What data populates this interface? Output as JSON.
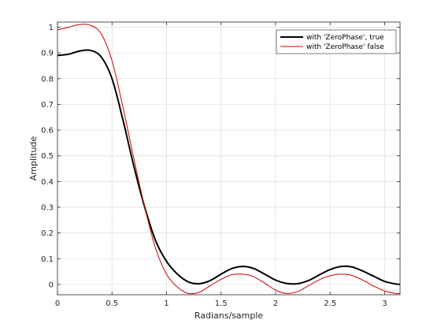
{
  "chart_data": {
    "type": "line",
    "xlabel": "Radians/sample",
    "ylabel": "Amplitude",
    "xlim": [
      0,
      3.1416
    ],
    "ylim": [
      -0.04,
      1.02
    ],
    "x_ticks": [
      0,
      0.5,
      1,
      1.5,
      2,
      2.5,
      3
    ],
    "x_tick_labels": [
      "0",
      "0.5",
      "1",
      "1.5",
      "2",
      "2.5",
      "3"
    ],
    "y_ticks": [
      0,
      0.1,
      0.2,
      0.3,
      0.4,
      0.5,
      0.6,
      0.7,
      0.8,
      0.9,
      1
    ],
    "y_tick_labels": [
      "0",
      "0.1",
      "0.2",
      "0.3",
      "0.4",
      "0.5",
      "0.6",
      "0.7",
      "0.8",
      "0.9",
      "1"
    ],
    "grid": true,
    "legend_position": "top-right",
    "series": [
      {
        "name": "with 'ZeroPhase', true",
        "color": "#000000",
        "line_width": "thick",
        "x": [
          0,
          0.1,
          0.2,
          0.3,
          0.4,
          0.5,
          0.6,
          0.7,
          0.8,
          0.9,
          1.0,
          1.1,
          1.2,
          1.3,
          1.4,
          1.5,
          1.6,
          1.7,
          1.8,
          1.9,
          2.0,
          2.1,
          2.2,
          2.3,
          2.4,
          2.5,
          2.6,
          2.7,
          2.8,
          2.9,
          3.0,
          3.1,
          3.1416
        ],
        "y": [
          0.89,
          0.895,
          0.907,
          0.91,
          0.885,
          0.8,
          0.64,
          0.46,
          0.3,
          0.17,
          0.09,
          0.04,
          0.01,
          0.003,
          0.015,
          0.04,
          0.062,
          0.07,
          0.062,
          0.04,
          0.017,
          0.004,
          0.003,
          0.015,
          0.037,
          0.058,
          0.07,
          0.068,
          0.052,
          0.032,
          0.012,
          0.002,
          0.0
        ]
      },
      {
        "name": "with 'ZeroPhase' false",
        "color": "#cc0000",
        "line_width": "thin",
        "x": [
          0,
          0.1,
          0.2,
          0.3,
          0.4,
          0.5,
          0.6,
          0.7,
          0.8,
          0.9,
          1.0,
          1.1,
          1.2,
          1.3,
          1.4,
          1.5,
          1.6,
          1.7,
          1.8,
          1.9,
          2.0,
          2.1,
          2.2,
          2.3,
          2.4,
          2.5,
          2.6,
          2.7,
          2.8,
          2.9,
          3.0,
          3.1,
          3.1416
        ],
        "y": [
          0.99,
          1.0,
          1.01,
          1.008,
          0.975,
          0.87,
          0.69,
          0.49,
          0.3,
          0.14,
          0.04,
          -0.01,
          -0.035,
          -0.03,
          -0.005,
          0.02,
          0.038,
          0.04,
          0.03,
          0.005,
          -0.022,
          -0.035,
          -0.028,
          -0.005,
          0.018,
          0.034,
          0.04,
          0.035,
          0.017,
          -0.006,
          -0.025,
          -0.035,
          -0.035
        ]
      }
    ]
  }
}
